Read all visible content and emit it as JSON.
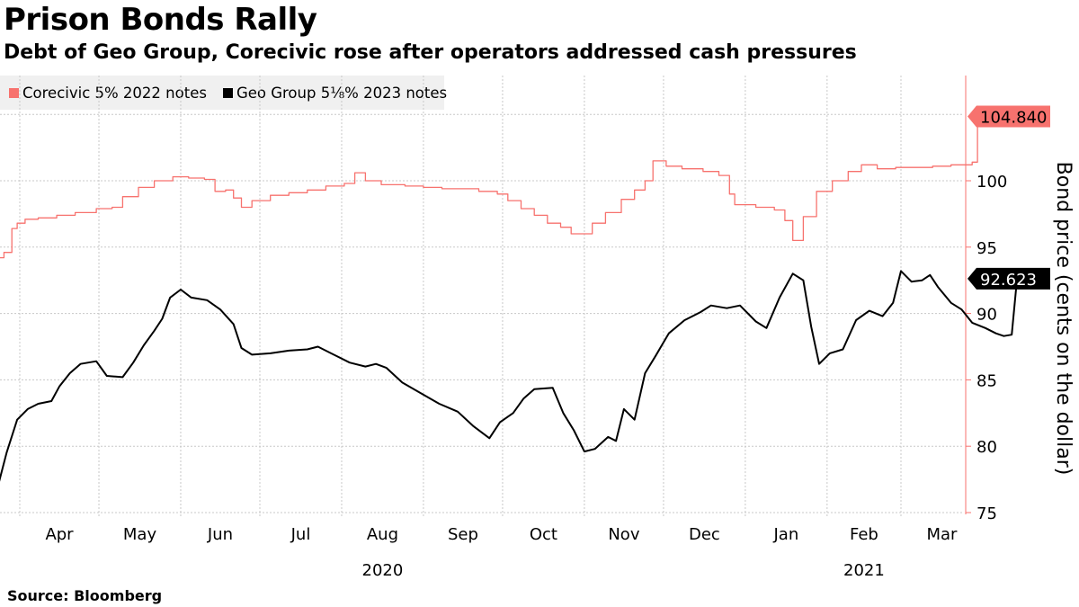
{
  "title": "Prison Bonds Rally",
  "subtitle": "Debt of Geo Group, Corecivic rose after operators addressed cash pressures",
  "source": "Source: Bloomberg",
  "colors": {
    "corecivic": "#f7726e",
    "geo": "#000000",
    "grid": "#c8c8c8",
    "axis": "#f7726e",
    "legend_bg": "#f0f0f0"
  },
  "chart_data": {
    "type": "line",
    "ylabel": "Bond price (cents on the dollar)",
    "ylim": [
      75,
      106
    ],
    "yticks": [
      75,
      80,
      85,
      90,
      95,
      100
    ],
    "grid": true,
    "legend_position": "top-left",
    "x_month_labels": [
      "Apr",
      "May",
      "Jun",
      "Jul",
      "Aug",
      "Sep",
      "Oct",
      "Nov",
      "Dec",
      "Jan",
      "Feb",
      "Mar"
    ],
    "x_year_labels": [
      {
        "month": "Aug",
        "year": "2020"
      },
      {
        "month": "Feb",
        "year": "2021"
      }
    ],
    "series": [
      {
        "name": "Corecivic 5% 2022 notes",
        "color": "#f7726e",
        "last_value": "104.840",
        "points": [
          [
            "2020-03-24",
            94.2
          ],
          [
            "2020-03-26",
            94.6
          ],
          [
            "2020-03-29",
            96.4
          ],
          [
            "2020-03-31",
            96.8
          ],
          [
            "2020-04-03",
            97.1
          ],
          [
            "2020-04-08",
            97.2
          ],
          [
            "2020-04-15",
            97.4
          ],
          [
            "2020-04-22",
            97.6
          ],
          [
            "2020-04-30",
            97.9
          ],
          [
            "2020-05-06",
            98.0
          ],
          [
            "2020-05-10",
            98.8
          ],
          [
            "2020-05-16",
            99.5
          ],
          [
            "2020-05-22",
            100.0
          ],
          [
            "2020-05-29",
            100.3
          ],
          [
            "2020-06-04",
            100.2
          ],
          [
            "2020-06-10",
            100.1
          ],
          [
            "2020-06-14",
            99.2
          ],
          [
            "2020-06-18",
            99.3
          ],
          [
            "2020-06-21",
            98.7
          ],
          [
            "2020-06-24",
            98.0
          ],
          [
            "2020-06-28",
            98.5
          ],
          [
            "2020-07-05",
            98.9
          ],
          [
            "2020-07-12",
            99.1
          ],
          [
            "2020-07-19",
            99.3
          ],
          [
            "2020-07-26",
            99.6
          ],
          [
            "2020-08-02",
            99.8
          ],
          [
            "2020-08-06",
            100.6
          ],
          [
            "2020-08-10",
            100.0
          ],
          [
            "2020-08-16",
            99.7
          ],
          [
            "2020-08-25",
            99.6
          ],
          [
            "2020-09-01",
            99.5
          ],
          [
            "2020-09-08",
            99.4
          ],
          [
            "2020-09-15",
            99.4
          ],
          [
            "2020-09-22",
            99.2
          ],
          [
            "2020-09-29",
            99.0
          ],
          [
            "2020-10-03",
            98.5
          ],
          [
            "2020-10-08",
            97.9
          ],
          [
            "2020-10-13",
            97.4
          ],
          [
            "2020-10-18",
            96.8
          ],
          [
            "2020-10-23",
            96.5
          ],
          [
            "2020-10-27",
            96.0
          ],
          [
            "2020-10-31",
            96.0
          ],
          [
            "2020-11-04",
            96.8
          ],
          [
            "2020-11-09",
            97.6
          ],
          [
            "2020-11-15",
            98.6
          ],
          [
            "2020-11-20",
            99.3
          ],
          [
            "2020-11-24",
            100.0
          ],
          [
            "2020-11-27",
            101.5
          ],
          [
            "2020-12-02",
            101.1
          ],
          [
            "2020-12-08",
            100.9
          ],
          [
            "2020-12-16",
            100.7
          ],
          [
            "2020-12-22",
            100.4
          ],
          [
            "2020-12-26",
            99.0
          ],
          [
            "2020-12-28",
            98.2
          ],
          [
            "2021-01-05",
            98.0
          ],
          [
            "2021-01-12",
            97.8
          ],
          [
            "2021-01-16",
            97.0
          ],
          [
            "2021-01-19",
            95.5
          ],
          [
            "2021-01-23",
            97.3
          ],
          [
            "2021-01-28",
            99.2
          ],
          [
            "2021-02-03",
            100.0
          ],
          [
            "2021-02-09",
            100.7
          ],
          [
            "2021-02-14",
            101.2
          ],
          [
            "2021-02-20",
            100.9
          ],
          [
            "2021-02-27",
            101.0
          ],
          [
            "2021-03-06",
            101.0
          ],
          [
            "2021-03-13",
            101.1
          ],
          [
            "2021-03-20",
            101.2
          ],
          [
            "2021-03-26",
            101.2
          ],
          [
            "2021-03-28",
            101.4
          ],
          [
            "2021-03-30",
            104.84
          ]
        ]
      },
      {
        "name": "Geo Group 5⅛% 2023 notes",
        "color": "#000000",
        "last_value": "92.623",
        "points": [
          [
            "2020-03-24",
            77.2
          ],
          [
            "2020-03-27",
            79.5
          ],
          [
            "2020-03-31",
            82.0
          ],
          [
            "2020-04-04",
            82.8
          ],
          [
            "2020-04-08",
            83.2
          ],
          [
            "2020-04-13",
            83.4
          ],
          [
            "2020-04-16",
            84.5
          ],
          [
            "2020-04-20",
            85.5
          ],
          [
            "2020-04-24",
            86.2
          ],
          [
            "2020-04-30",
            86.4
          ],
          [
            "2020-05-04",
            85.3
          ],
          [
            "2020-05-10",
            85.2
          ],
          [
            "2020-05-14",
            86.3
          ],
          [
            "2020-05-18",
            87.6
          ],
          [
            "2020-05-22",
            88.7
          ],
          [
            "2020-05-25",
            89.6
          ],
          [
            "2020-05-28",
            91.2
          ],
          [
            "2020-06-01",
            91.8
          ],
          [
            "2020-06-05",
            91.2
          ],
          [
            "2020-06-11",
            91.0
          ],
          [
            "2020-06-16",
            90.3
          ],
          [
            "2020-06-21",
            89.2
          ],
          [
            "2020-06-24",
            87.4
          ],
          [
            "2020-06-28",
            86.9
          ],
          [
            "2020-07-05",
            87.0
          ],
          [
            "2020-07-12",
            87.2
          ],
          [
            "2020-07-19",
            87.3
          ],
          [
            "2020-07-23",
            87.5
          ],
          [
            "2020-07-28",
            87.0
          ],
          [
            "2020-08-04",
            86.3
          ],
          [
            "2020-08-10",
            86.0
          ],
          [
            "2020-08-14",
            86.2
          ],
          [
            "2020-08-18",
            85.9
          ],
          [
            "2020-08-24",
            84.8
          ],
          [
            "2020-08-31",
            84.0
          ],
          [
            "2020-09-07",
            83.2
          ],
          [
            "2020-09-14",
            82.6
          ],
          [
            "2020-09-20",
            81.5
          ],
          [
            "2020-09-26",
            80.6
          ],
          [
            "2020-09-30",
            81.8
          ],
          [
            "2020-10-05",
            82.5
          ],
          [
            "2020-10-09",
            83.6
          ],
          [
            "2020-10-13",
            84.3
          ],
          [
            "2020-10-20",
            84.4
          ],
          [
            "2020-10-24",
            82.5
          ],
          [
            "2020-10-28",
            81.2
          ],
          [
            "2020-11-01",
            79.6
          ],
          [
            "2020-11-05",
            79.8
          ],
          [
            "2020-11-10",
            80.7
          ],
          [
            "2020-11-13",
            80.4
          ],
          [
            "2020-11-16",
            82.8
          ],
          [
            "2020-11-20",
            82.0
          ],
          [
            "2020-11-24",
            85.5
          ],
          [
            "2020-11-28",
            86.8
          ],
          [
            "2020-12-03",
            88.5
          ],
          [
            "2020-12-09",
            89.5
          ],
          [
            "2020-12-15",
            90.1
          ],
          [
            "2020-12-19",
            90.6
          ],
          [
            "2020-12-25",
            90.4
          ],
          [
            "2020-12-30",
            90.6
          ],
          [
            "2021-01-05",
            89.4
          ],
          [
            "2021-01-09",
            88.9
          ],
          [
            "2021-01-14",
            91.2
          ],
          [
            "2021-01-19",
            93.0
          ],
          [
            "2021-01-23",
            92.5
          ],
          [
            "2021-01-26",
            89.0
          ],
          [
            "2021-01-29",
            86.2
          ],
          [
            "2021-02-02",
            87.0
          ],
          [
            "2021-02-07",
            87.3
          ],
          [
            "2021-02-12",
            89.5
          ],
          [
            "2021-02-17",
            90.2
          ],
          [
            "2021-02-22",
            89.8
          ],
          [
            "2021-02-26",
            90.8
          ],
          [
            "2021-03-01",
            93.2
          ],
          [
            "2021-03-05",
            92.4
          ],
          [
            "2021-03-09",
            92.5
          ],
          [
            "2021-03-12",
            92.9
          ],
          [
            "2021-03-15",
            92.0
          ],
          [
            "2021-03-20",
            90.8
          ],
          [
            "2021-03-24",
            90.3
          ],
          [
            "2021-03-28",
            89.3
          ],
          [
            "2021-04-02",
            88.9
          ],
          [
            "2021-04-06",
            88.5
          ],
          [
            "2021-04-09",
            88.3
          ],
          [
            "2021-04-12",
            88.4
          ],
          [
            "2021-04-14",
            92.623
          ]
        ]
      }
    ]
  }
}
